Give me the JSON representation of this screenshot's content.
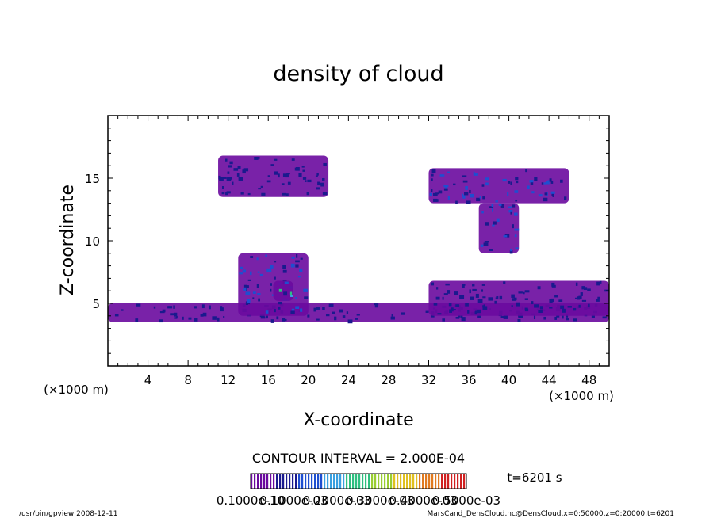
{
  "chart_data": {
    "type": "heatmap",
    "title": "density of cloud",
    "xlabel": "X-coordinate",
    "ylabel": "Z-coordinate",
    "x_unit_left": "(×1000 m)",
    "x_unit_right": "(×1000 m)",
    "xlim": [
      0,
      50
    ],
    "ylim": [
      0,
      20
    ],
    "x_ticks": [
      "4",
      "8",
      "12",
      "16",
      "20",
      "24",
      "28",
      "32",
      "36",
      "40",
      "44",
      "48"
    ],
    "x_tick_values": [
      4,
      8,
      12,
      16,
      20,
      24,
      28,
      32,
      36,
      40,
      44,
      48
    ],
    "y_ticks": [
      "5",
      "10",
      "15"
    ],
    "y_tick_values": [
      5,
      10,
      15
    ],
    "contour_interval": "CONTOUR INTERVAL = 2.000E-04",
    "time_label": "t=6201 s",
    "colorbar_labels": [
      "0.1000e-10",
      "0.1000e-03",
      "0.2000e-03",
      "0.3000e-03",
      "0.4000e-03",
      "0.5000e-03"
    ],
    "colorbar_colors": [
      "#6a0a9e",
      "#1a1a8e",
      "#1e4fd0",
      "#3aa0e0",
      "#2fbf80",
      "#9acd32",
      "#e0c020",
      "#e07a20",
      "#d02020"
    ],
    "regions": [
      {
        "x": [
          0,
          50
        ],
        "z": [
          3.5,
          5.0
        ],
        "level": 1
      },
      {
        "x": [
          13,
          20
        ],
        "z": [
          4.0,
          9.0
        ],
        "level": 2
      },
      {
        "x": [
          16.5,
          18.5
        ],
        "z": [
          5.2,
          6.8
        ],
        "level": 4
      },
      {
        "x": [
          11,
          22
        ],
        "z": [
          13.5,
          16.8
        ],
        "level": 1
      },
      {
        "x": [
          32,
          46
        ],
        "z": [
          13.0,
          15.8
        ],
        "level": 2
      },
      {
        "x": [
          37,
          41
        ],
        "z": [
          9.0,
          13.0
        ],
        "level": 2
      },
      {
        "x": [
          32,
          50
        ],
        "z": [
          4.0,
          6.8
        ],
        "level": 1
      }
    ]
  },
  "footer": {
    "left": "/usr/bin/gpview   2008-12-11",
    "right": "MarsCand_DensCloud.nc@DensCloud,x=0:50000,z=0:20000,t=6201"
  }
}
